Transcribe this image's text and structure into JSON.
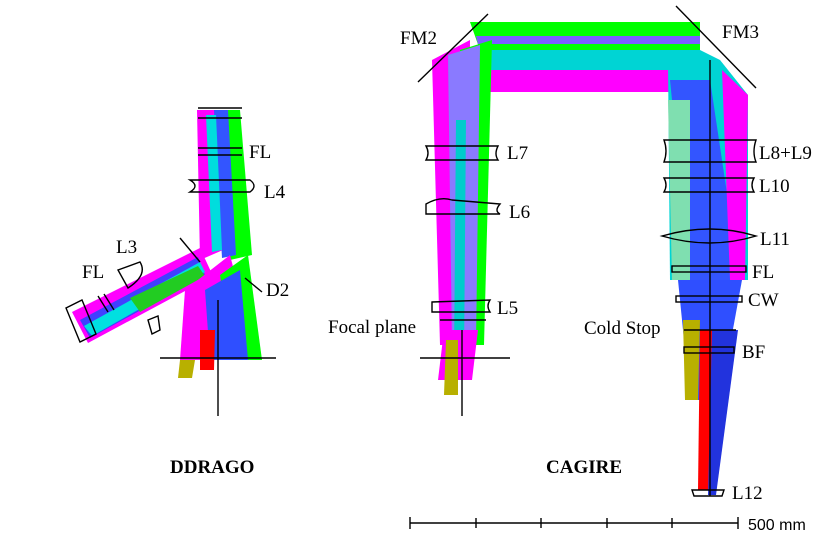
{
  "instruments": {
    "left": {
      "title": "DDRAGO",
      "labels": {
        "fl_upper": "FL",
        "l4": "L4",
        "l3": "L3",
        "fl_lower": "FL",
        "d2": "D2"
      }
    },
    "right": {
      "title": "CAGIRE",
      "labels": {
        "fm2": "FM2",
        "fm3": "FM3",
        "l7": "L7",
        "l6": "L6",
        "l5": "L5",
        "focal_plane": "Focal plane",
        "l8_l9": "L8+L9",
        "l10": "L10",
        "l11": "L11",
        "fl": "FL",
        "cw": "CW",
        "cold_stop": "Cold Stop",
        "bf": "BF",
        "l12": "L12"
      }
    }
  },
  "scale_bar": {
    "label": "500 mm"
  },
  "colors": {
    "magenta": "#ff00ff",
    "green": "#00ff00",
    "blue": "#2020ff",
    "cyan": "#00e5e5",
    "red": "#ff0000",
    "olive": "#b8b000",
    "violet": "#9966ff",
    "dark": "#000000"
  }
}
